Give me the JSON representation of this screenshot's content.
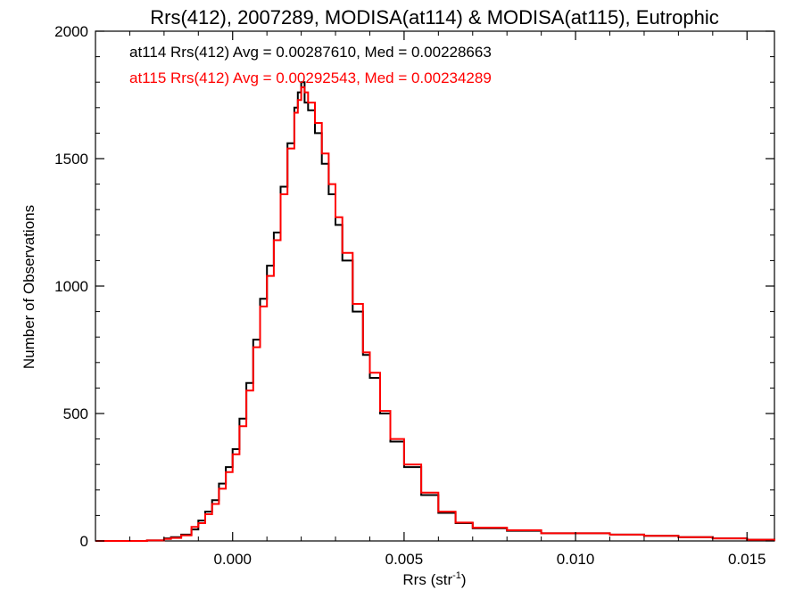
{
  "chart_data": {
    "type": "line",
    "title": "Rrs(412), 2007289, MODISA(at114) & MODISA(at115), Eutrophic",
    "xlabel": "Rrs (str",
    "xlabel_sup": "-1",
    "xlabel_close": ")",
    "ylabel": "Number of Observations",
    "xlim": [
      -0.004,
      0.0158
    ],
    "ylim": [
      0,
      2000
    ],
    "xticks": [
      0.0,
      0.005,
      0.01,
      0.015
    ],
    "xtick_labels": [
      "0.000",
      "0.005",
      "0.010",
      "0.015"
    ],
    "yticks": [
      0,
      500,
      1000,
      1500,
      2000
    ],
    "ytick_labels": [
      "0",
      "500",
      "1000",
      "1500",
      "2000"
    ],
    "grid": false,
    "annotations": [
      {
        "text": "at114 Rrs(412) Avg = 0.00287610, Med = 0.00228663",
        "color": "#000000"
      },
      {
        "text": "at115 Rrs(412) Avg = 0.00292543, Med = 0.00234289",
        "color": "#ff0000"
      }
    ],
    "series": [
      {
        "color": "#000000",
        "x": [
          -0.004,
          -0.003,
          -0.0025,
          -0.002,
          -0.0018,
          -0.0015,
          -0.0012,
          -0.001,
          -0.0008,
          -0.0006,
          -0.0004,
          -0.0002,
          0.0,
          0.0002,
          0.0004,
          0.0006,
          0.0008,
          0.001,
          0.0012,
          0.0014,
          0.0016,
          0.0018,
          0.0019,
          0.002,
          0.0021,
          0.0022,
          0.0024,
          0.0026,
          0.0028,
          0.003,
          0.0032,
          0.0035,
          0.0038,
          0.004,
          0.0043,
          0.0046,
          0.005,
          0.0055,
          0.006,
          0.0065,
          0.007,
          0.008,
          0.009,
          0.01,
          0.011,
          0.012,
          0.013,
          0.014,
          0.015,
          0.0158
        ],
        "y": [
          0,
          0,
          2,
          10,
          15,
          25,
          45,
          80,
          115,
          160,
          225,
          290,
          360,
          480,
          620,
          790,
          950,
          1080,
          1210,
          1390,
          1560,
          1700,
          1760,
          1800,
          1720,
          1690,
          1600,
          1480,
          1360,
          1240,
          1100,
          900,
          730,
          640,
          500,
          390,
          290,
          180,
          110,
          70,
          50,
          40,
          30,
          30,
          25,
          20,
          15,
          10,
          5,
          0
        ]
      },
      {
        "color": "#ff0000",
        "x": [
          -0.004,
          -0.003,
          -0.0025,
          -0.002,
          -0.0018,
          -0.0015,
          -0.0012,
          -0.001,
          -0.0008,
          -0.0006,
          -0.0004,
          -0.0002,
          0.0,
          0.0002,
          0.0004,
          0.0006,
          0.0008,
          0.001,
          0.0012,
          0.0014,
          0.0016,
          0.0018,
          0.0019,
          0.002,
          0.0021,
          0.0022,
          0.0024,
          0.0026,
          0.0028,
          0.003,
          0.0032,
          0.0035,
          0.0038,
          0.004,
          0.0043,
          0.0046,
          0.005,
          0.0055,
          0.006,
          0.0065,
          0.007,
          0.008,
          0.009,
          0.01,
          0.011,
          0.012,
          0.013,
          0.014,
          0.015,
          0.0158
        ],
        "y": [
          0,
          0,
          2,
          8,
          12,
          22,
          55,
          70,
          105,
          145,
          205,
          270,
          340,
          450,
          590,
          760,
          920,
          1040,
          1180,
          1360,
          1540,
          1680,
          1730,
          1780,
          1760,
          1720,
          1640,
          1520,
          1400,
          1270,
          1130,
          930,
          740,
          660,
          510,
          400,
          300,
          190,
          115,
          72,
          52,
          42,
          30,
          30,
          25,
          20,
          15,
          10,
          5,
          0
        ]
      }
    ]
  }
}
